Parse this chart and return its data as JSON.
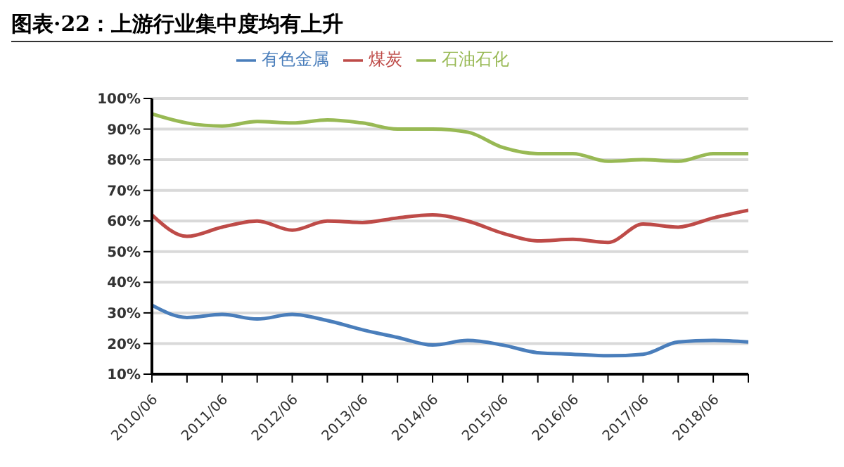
{
  "chart_data": {
    "type": "line",
    "title": "图表·22：上游行业集中度均有上升",
    "categories": [
      "2010/06",
      null,
      "2011/06",
      null,
      "2012/06",
      null,
      "2013/06",
      null,
      "2014/06",
      null,
      "2015/06",
      null,
      "2016/06",
      null,
      "2017/06",
      null,
      "2018/06",
      null
    ],
    "series": [
      {
        "name": "有色金属",
        "color": "#4a7ebb",
        "values": [
          32.5,
          28.5,
          29.5,
          28,
          29.5,
          27.5,
          24.5,
          22,
          19.5,
          21,
          19.5,
          17,
          16.5,
          16,
          16.5,
          20.5,
          21,
          20.5
        ]
      },
      {
        "name": "煤炭",
        "color": "#be4b48",
        "values": [
          62,
          55,
          58,
          60,
          57,
          60,
          59.5,
          61,
          62,
          60,
          56,
          53.5,
          54,
          53,
          59,
          58,
          61,
          63.5
        ]
      },
      {
        "name": "石油石化",
        "color": "#98b954",
        "values": [
          95,
          92,
          91,
          92.5,
          92,
          93,
          92,
          90,
          90,
          89,
          84,
          82,
          82,
          79.5,
          80,
          79.5,
          82,
          82
        ]
      }
    ],
    "ylim": [
      10,
      100
    ],
    "yticks": [
      {
        "value": 10,
        "label": "10%"
      },
      {
        "value": 20,
        "label": "20%"
      },
      {
        "value": 30,
        "label": "30%"
      },
      {
        "value": 40,
        "label": "40%"
      },
      {
        "value": 50,
        "label": "50%"
      },
      {
        "value": 60,
        "label": "60%"
      },
      {
        "value": 70,
        "label": "70%"
      },
      {
        "value": 80,
        "label": "80%"
      },
      {
        "value": 90,
        "label": "90%"
      },
      {
        "value": 100,
        "label": "100%"
      }
    ],
    "grid": "y",
    "legend": "top",
    "marker": "none",
    "line_style": "solid"
  }
}
